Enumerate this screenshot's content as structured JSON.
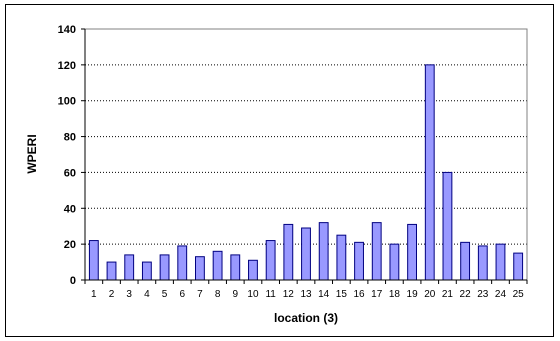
{
  "chart_data": {
    "type": "bar",
    "xlabel": "location (3)",
    "ylabel": "WPERI",
    "ylim": [
      0,
      140
    ],
    "yticks": [
      0,
      20,
      40,
      60,
      80,
      100,
      120,
      140
    ],
    "grid": "horizontal dashed",
    "categories": [
      "1",
      "2",
      "3",
      "4",
      "5",
      "6",
      "7",
      "8",
      "9",
      "10",
      "11",
      "12",
      "13",
      "14",
      "15",
      "16",
      "17",
      "18",
      "19",
      "20",
      "21",
      "22",
      "23",
      "24",
      "25"
    ],
    "values": [
      22,
      10,
      14,
      10,
      14,
      19,
      13,
      16,
      14,
      11,
      22,
      31,
      29,
      32,
      25,
      21,
      32,
      20,
      31,
      120,
      60,
      21,
      19,
      20,
      15
    ],
    "bar_color": "#9999ff",
    "bar_edge_color": "#000080"
  }
}
